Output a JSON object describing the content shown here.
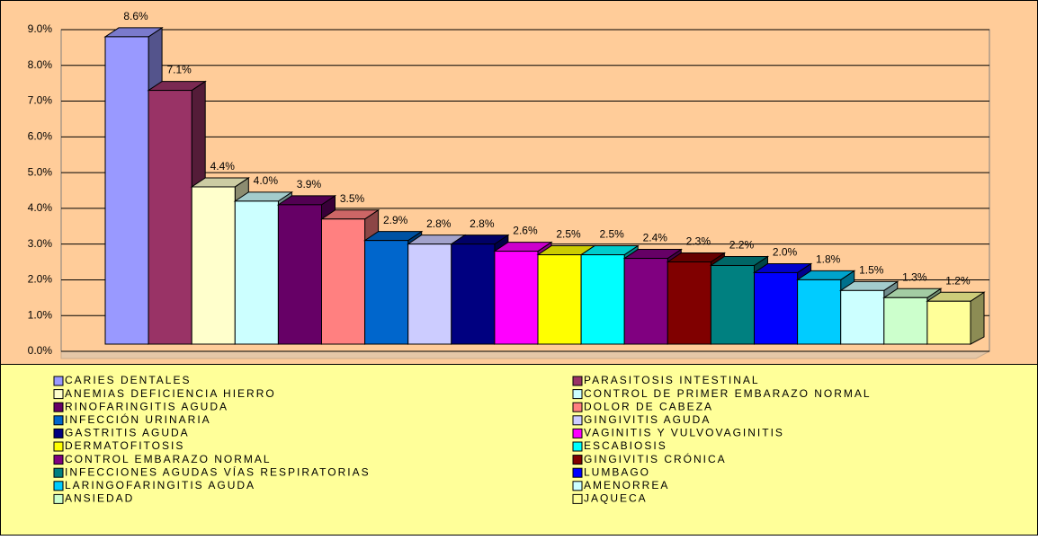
{
  "chart_data": {
    "type": "bar3d",
    "categories": [
      "CARIES DENTALES",
      "PARASITOSIS INTESTINAL",
      "ANEMIAS DEFICIENCIA HIERRO",
      "CONTROL DE PRIMER EMBARAZO NORMAL",
      "RINOFARINGITIS AGUDA",
      "DOLOR DE CABEZA",
      "INFECCIÓN URINARIA",
      "GINGIVITIS AGUDA",
      "GASTRITIS AGUDA",
      "VAGINITIS Y VULVOVAGINITIS",
      "DERMATOFITOSIS",
      "ESCABIOSIS",
      "CONTROL EMBARAZO NORMAL",
      "GINGIVITIS CRÓNICA",
      "INFECCIONES AGUDAS VÍAS RESPIRATORIAS",
      "LUMBAGO",
      "LARINGOFARINGITIS AGUDA",
      "AMENORREA",
      "ANSIEDAD",
      "JAQUECA"
    ],
    "values": [
      8.6,
      7.1,
      4.4,
      4.0,
      3.9,
      3.5,
      2.9,
      2.8,
      2.8,
      2.6,
      2.5,
      2.5,
      2.4,
      2.3,
      2.2,
      2.0,
      1.8,
      1.5,
      1.3,
      1.2
    ],
    "value_labels": [
      "8.6%",
      "7.1%",
      "4.4%",
      "4.0%",
      "3.9%",
      "3.5%",
      "2.9%",
      "2.8%",
      "2.8%",
      "2.6%",
      "2.5%",
      "2.5%",
      "2.4%",
      "2.3%",
      "2.2%",
      "2.0%",
      "1.8%",
      "1.5%",
      "1.3%",
      "1.2%"
    ],
    "colors": [
      "#9999ff",
      "#993366",
      "#ffffcc",
      "#ccffff",
      "#660066",
      "#ff8080",
      "#0066cc",
      "#ccccff",
      "#000080",
      "#ff00ff",
      "#ffff00",
      "#00ffff",
      "#800080",
      "#800000",
      "#008080",
      "#0000ff",
      "#00ccff",
      "#ccffff",
      "#ccffcc",
      "#ffff99"
    ],
    "ylim": [
      0,
      9
    ],
    "yticks": [
      {
        "value": 0,
        "label": "0.0%"
      },
      {
        "value": 1,
        "label": "1.0%"
      },
      {
        "value": 2,
        "label": "2.0%"
      },
      {
        "value": 3,
        "label": "3.0%"
      },
      {
        "value": 4,
        "label": "4.0%"
      },
      {
        "value": 5,
        "label": "5.0%"
      },
      {
        "value": 6,
        "label": "6.0%"
      },
      {
        "value": 7,
        "label": "7.0%"
      },
      {
        "value": 8,
        "label": "8.0%"
      },
      {
        "value": 9,
        "label": "9.0%"
      }
    ],
    "grid": true
  }
}
